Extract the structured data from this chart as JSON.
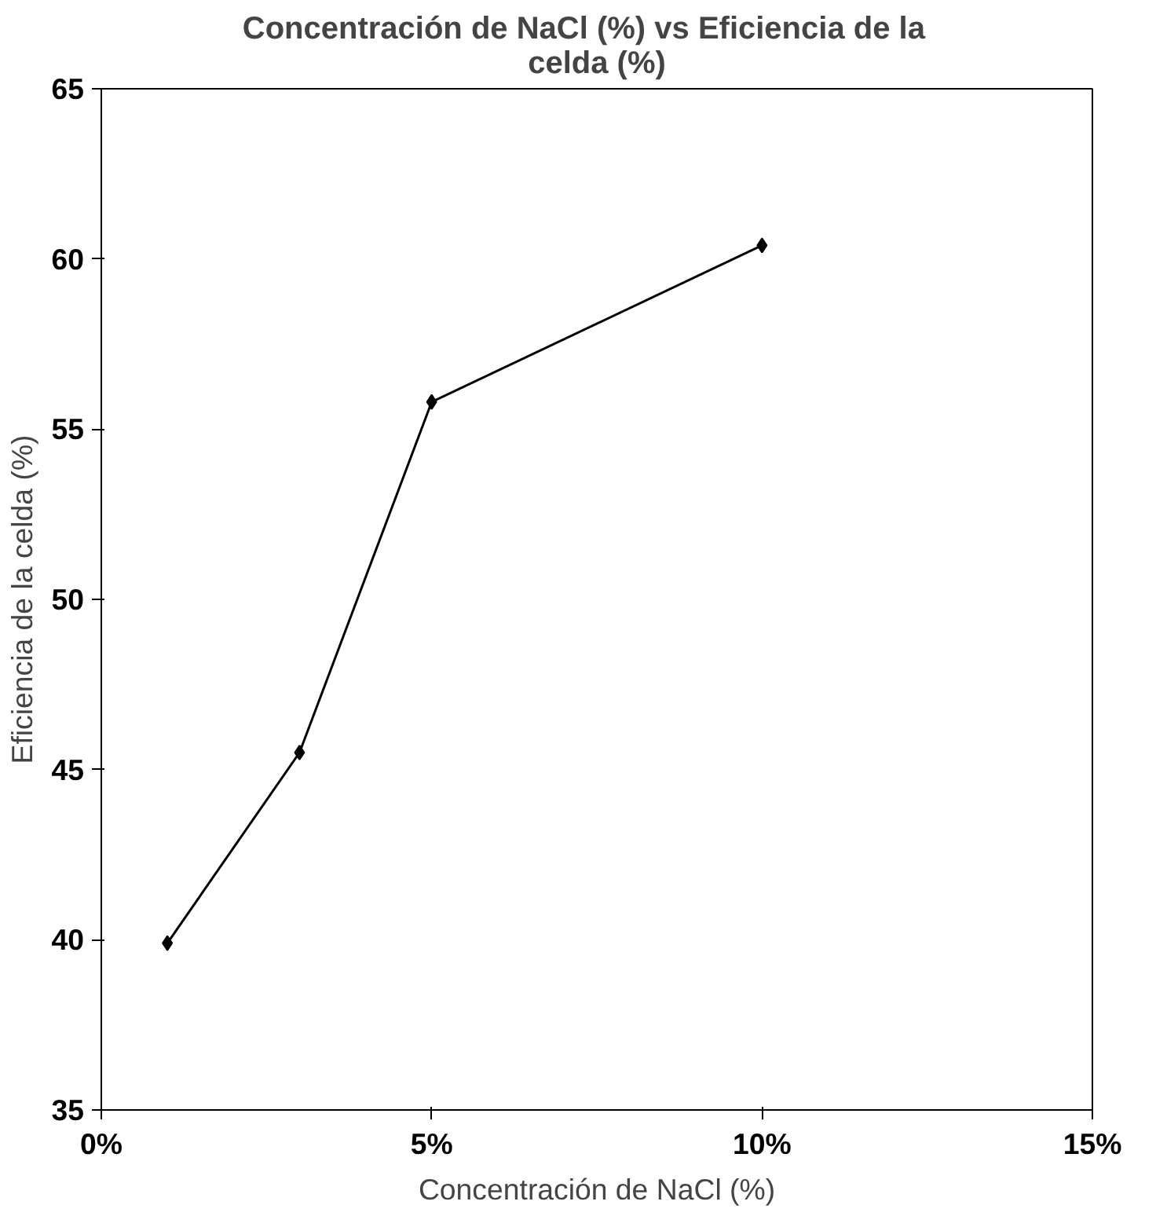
{
  "chart_data": {
    "type": "line",
    "title": "Concentración  de NaCl (%)  vs  Eficiencia de la celda (%)",
    "xlabel": "Concentración de NaCl (%)",
    "ylabel": "Eficiencia de la celda (%)",
    "x": [
      1,
      3,
      5,
      10
    ],
    "series": [
      {
        "color": "#000000",
        "values": [
          39.9,
          45.5,
          55.8,
          60.4
        ]
      }
    ],
    "xlim": [
      0,
      15
    ],
    "xticks": [
      {
        "value": 0,
        "label": "0%"
      },
      {
        "value": 5,
        "label": "5%"
      },
      {
        "value": 10,
        "label": "10%"
      },
      {
        "value": 15,
        "label": "15%"
      }
    ],
    "ylim": [
      35,
      65
    ],
    "yticks": [
      35,
      40,
      45,
      50,
      55,
      60,
      65
    ],
    "marker": "diamond",
    "line_style": "solid"
  }
}
